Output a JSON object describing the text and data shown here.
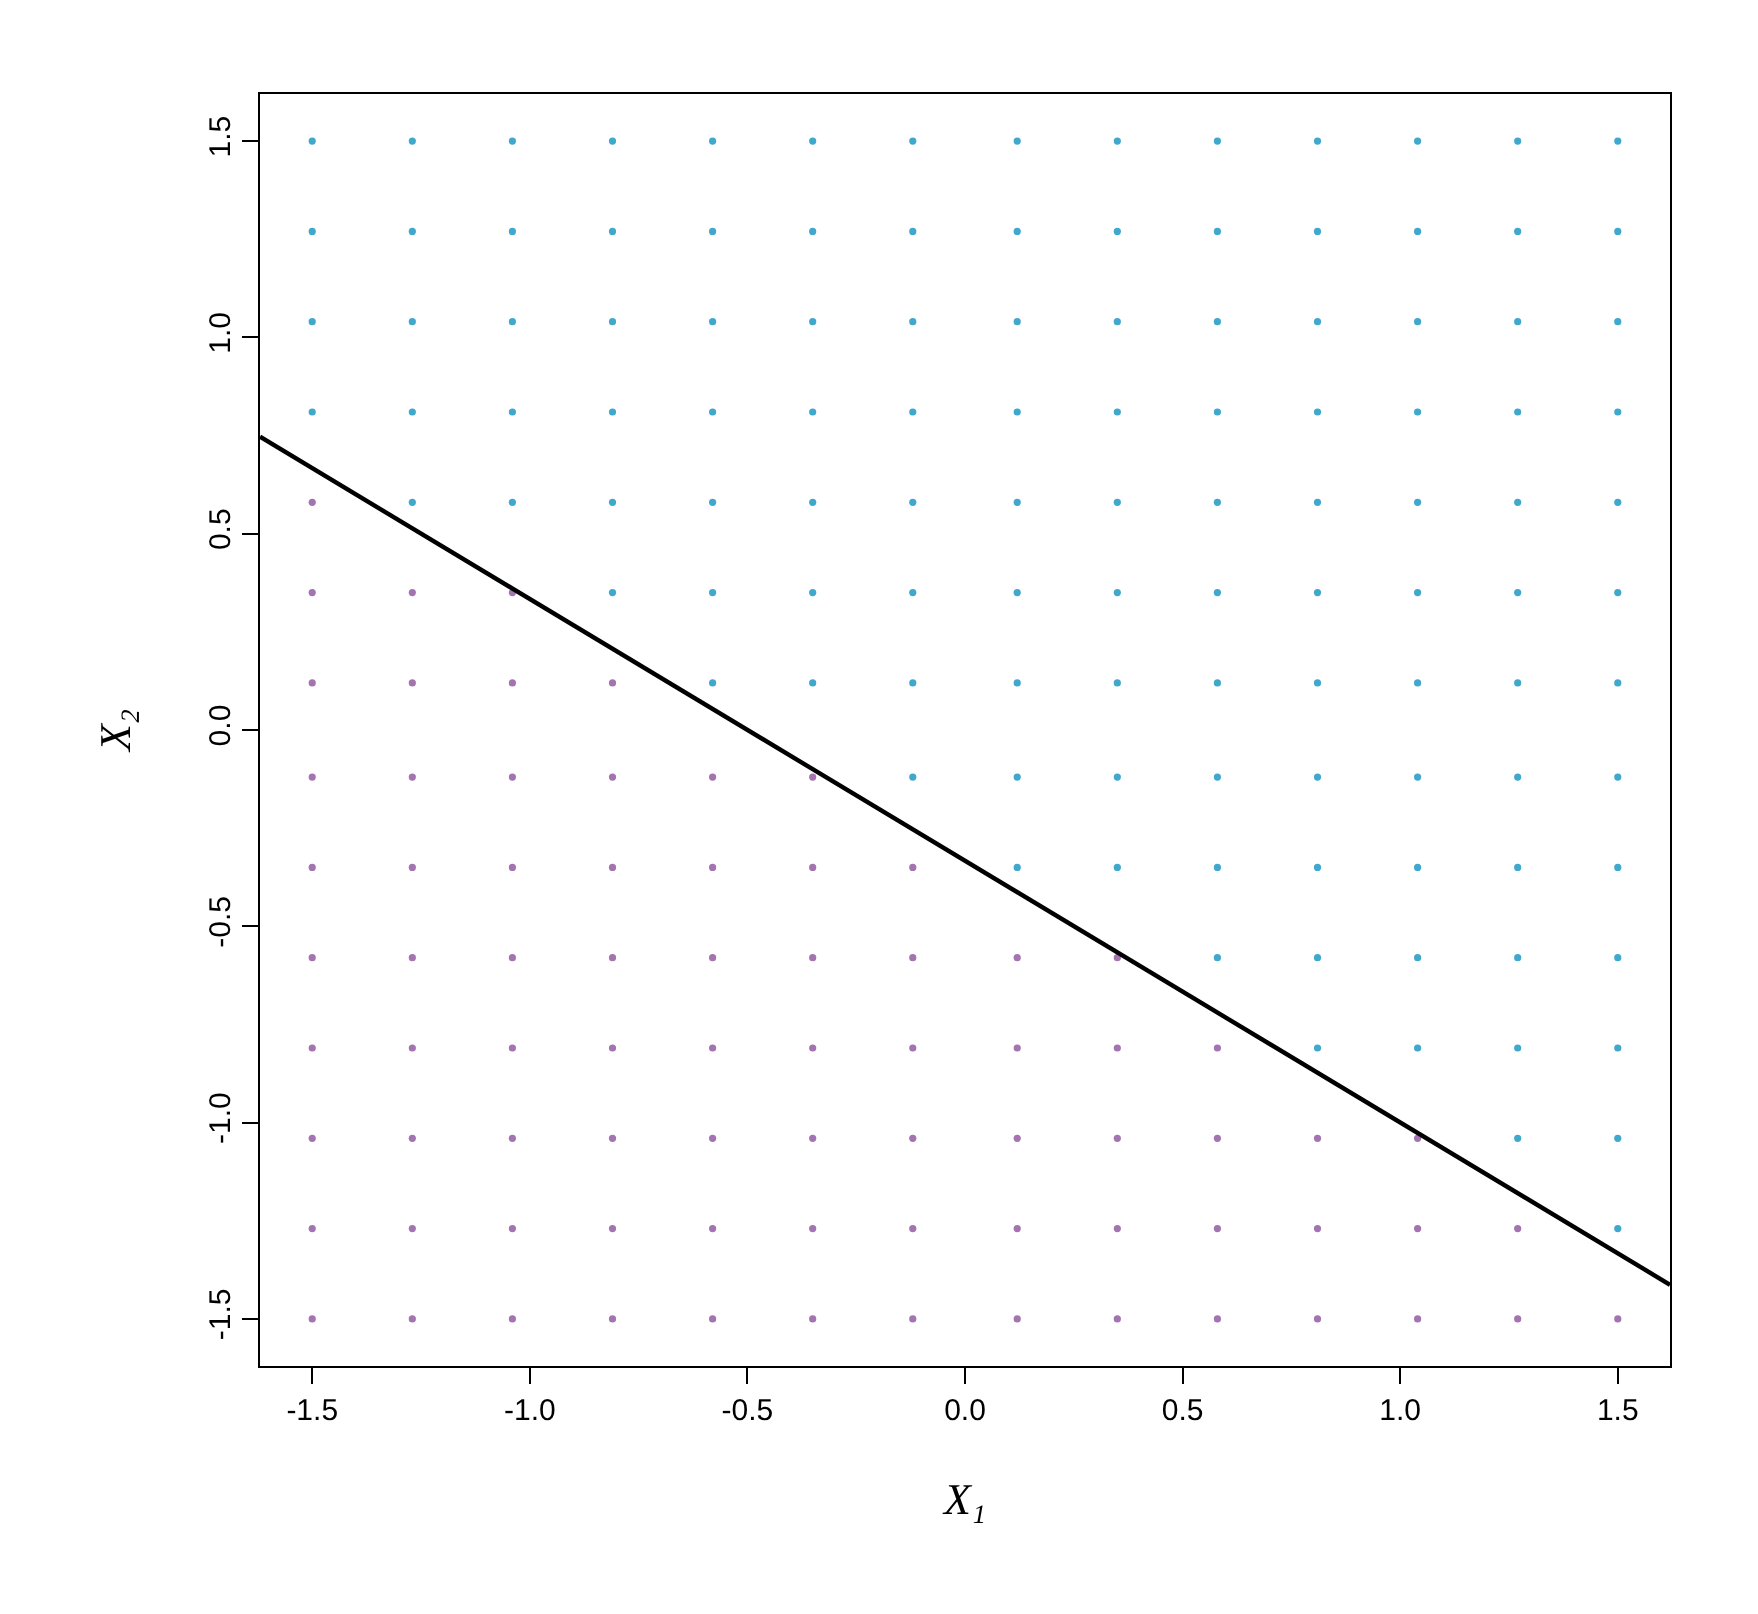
{
  "chart_data": {
    "type": "scatter",
    "xlabel": "X₁",
    "ylabel": "X₂",
    "xlim": [
      -1.62,
      1.62
    ],
    "ylim": [
      -1.62,
      1.62
    ],
    "xticks": [
      {
        "value": -1.5,
        "label": "-1.5"
      },
      {
        "value": -1,
        "label": "-1.0"
      },
      {
        "value": -0.5,
        "label": "-0.5"
      },
      {
        "value": 0,
        "label": "0.0"
      },
      {
        "value": 0.5,
        "label": "0.5"
      },
      {
        "value": 1,
        "label": "1.0"
      },
      {
        "value": 1.5,
        "label": "1.5"
      }
    ],
    "yticks": [
      {
        "value": -1.5,
        "label": "-1.5"
      },
      {
        "value": -1,
        "label": "-1.0"
      },
      {
        "value": -0.5,
        "label": "-0.5"
      },
      {
        "value": 0,
        "label": "0.0"
      },
      {
        "value": 0.5,
        "label": "0.5"
      },
      {
        "value": 1,
        "label": "1.0"
      },
      {
        "value": 1.5,
        "label": "1.5"
      }
    ],
    "grid": false,
    "series": [
      {
        "marker": "circle",
        "color": "#40a8cc",
        "x": [
          -1.5,
          -1.5,
          -1.5,
          -1.5,
          -1.27,
          -1.27,
          -1.27,
          -1.27,
          -1.27,
          -1.04,
          -1.04,
          -1.04,
          -1.04,
          -1.04,
          -0.81,
          -0.81,
          -0.81,
          -0.81,
          -0.81,
          -0.81,
          -0.58,
          -0.58,
          -0.58,
          -0.58,
          -0.58,
          -0.58,
          -0.58,
          -0.35,
          -0.35,
          -0.35,
          -0.35,
          -0.35,
          -0.35,
          -0.35,
          -0.12,
          -0.12,
          -0.12,
          -0.12,
          -0.12,
          -0.12,
          -0.12,
          -0.12,
          0.12,
          0.12,
          0.12,
          0.12,
          0.12,
          0.12,
          0.12,
          0.12,
          0.12,
          0.35,
          0.35,
          0.35,
          0.35,
          0.35,
          0.35,
          0.35,
          0.35,
          0.35,
          0.58,
          0.58,
          0.58,
          0.58,
          0.58,
          0.58,
          0.58,
          0.58,
          0.58,
          0.58,
          0.81,
          0.81,
          0.81,
          0.81,
          0.81,
          0.81,
          0.81,
          0.81,
          0.81,
          0.81,
          0.81,
          1.04,
          1.04,
          1.04,
          1.04,
          1.04,
          1.04,
          1.04,
          1.04,
          1.04,
          1.04,
          1.04,
          1.27,
          1.27,
          1.27,
          1.27,
          1.27,
          1.27,
          1.27,
          1.27,
          1.27,
          1.27,
          1.27,
          1.27,
          1.5,
          1.5,
          1.5,
          1.5,
          1.5,
          1.5,
          1.5,
          1.5,
          1.5,
          1.5,
          1.5,
          1.5,
          1.5
        ],
        "values": [
          0.81,
          1.04,
          1.27,
          1.5,
          0.58,
          0.81,
          1.04,
          1.27,
          1.5,
          0.58,
          0.81,
          1.04,
          1.27,
          1.5,
          0.35,
          0.58,
          0.81,
          1.04,
          1.27,
          1.5,
          0.12,
          0.35,
          0.58,
          0.81,
          1.04,
          1.27,
          1.5,
          0.12,
          0.35,
          0.58,
          0.81,
          1.04,
          1.27,
          1.5,
          -0.12,
          0.12,
          0.35,
          0.58,
          0.81,
          1.04,
          1.27,
          1.5,
          -0.35,
          -0.12,
          0.12,
          0.35,
          0.58,
          0.81,
          1.04,
          1.27,
          1.5,
          -0.35,
          -0.12,
          0.12,
          0.35,
          0.58,
          0.81,
          1.04,
          1.27,
          1.5,
          -0.58,
          -0.35,
          -0.12,
          0.12,
          0.35,
          0.58,
          0.81,
          1.04,
          1.27,
          1.5,
          -0.81,
          -0.58,
          -0.35,
          -0.12,
          0.12,
          0.35,
          0.58,
          0.81,
          1.04,
          1.27,
          1.5,
          -0.81,
          -0.58,
          -0.35,
          -0.12,
          0.12,
          0.35,
          0.58,
          0.81,
          1.04,
          1.27,
          1.5,
          -1.04,
          -0.81,
          -0.58,
          -0.35,
          -0.12,
          0.12,
          0.35,
          0.58,
          0.81,
          1.04,
          1.27,
          1.5,
          -1.27,
          -1.04,
          -0.81,
          -0.58,
          -0.35,
          -0.12,
          0.12,
          0.35,
          0.58,
          0.81,
          1.04,
          1.27,
          1.5
        ]
      },
      {
        "marker": "circle",
        "color": "#a374b0",
        "x": [
          -1.5,
          -1.5,
          -1.5,
          -1.5,
          -1.5,
          -1.5,
          -1.5,
          -1.5,
          -1.5,
          -1.5,
          -1.27,
          -1.27,
          -1.27,
          -1.27,
          -1.27,
          -1.27,
          -1.27,
          -1.27,
          -1.27,
          -1.04,
          -1.04,
          -1.04,
          -1.04,
          -1.04,
          -1.04,
          -1.04,
          -1.04,
          -1.04,
          -0.81,
          -0.81,
          -0.81,
          -0.81,
          -0.81,
          -0.81,
          -0.81,
          -0.81,
          -0.58,
          -0.58,
          -0.58,
          -0.58,
          -0.58,
          -0.58,
          -0.58,
          -0.35,
          -0.35,
          -0.35,
          -0.35,
          -0.35,
          -0.35,
          -0.35,
          -0.12,
          -0.12,
          -0.12,
          -0.12,
          -0.12,
          -0.12,
          0.12,
          0.12,
          0.12,
          0.12,
          0.12,
          0.35,
          0.35,
          0.35,
          0.35,
          0.35,
          0.58,
          0.58,
          0.58,
          0.58,
          0.81,
          0.81,
          0.81,
          1.04,
          1.04,
          1.04,
          1.27,
          1.27,
          1.5
        ],
        "values": [
          -1.5,
          -1.27,
          -1.04,
          -0.81,
          -0.58,
          -0.35,
          -0.12,
          0.12,
          0.35,
          0.58,
          -1.5,
          -1.27,
          -1.04,
          -0.81,
          -0.58,
          -0.35,
          -0.12,
          0.12,
          0.35,
          -1.5,
          -1.27,
          -1.04,
          -0.81,
          -0.58,
          -0.35,
          -0.12,
          0.12,
          0.35,
          -1.5,
          -1.27,
          -1.04,
          -0.81,
          -0.58,
          -0.35,
          -0.12,
          0.12,
          -1.5,
          -1.27,
          -1.04,
          -0.81,
          -0.58,
          -0.35,
          -0.12,
          -1.5,
          -1.27,
          -1.04,
          -0.81,
          -0.58,
          -0.35,
          -0.12,
          -1.5,
          -1.27,
          -1.04,
          -0.81,
          -0.58,
          -0.35,
          -1.5,
          -1.27,
          -1.04,
          -0.81,
          -0.58,
          -1.5,
          -1.27,
          -1.04,
          -0.81,
          -0.58,
          -1.5,
          -1.27,
          -1.04,
          -0.81,
          -1.5,
          -1.27,
          -1.04,
          -1.5,
          -1.27,
          -1.04,
          -1.5,
          -1.27,
          -1.5
        ]
      },
      {
        "type": "line",
        "marker": "none",
        "line_style": "solid",
        "color": "#000000",
        "x": [
          -1.62,
          1.62
        ],
        "values": [
          0.747,
          -1.413
        ]
      }
    ]
  }
}
